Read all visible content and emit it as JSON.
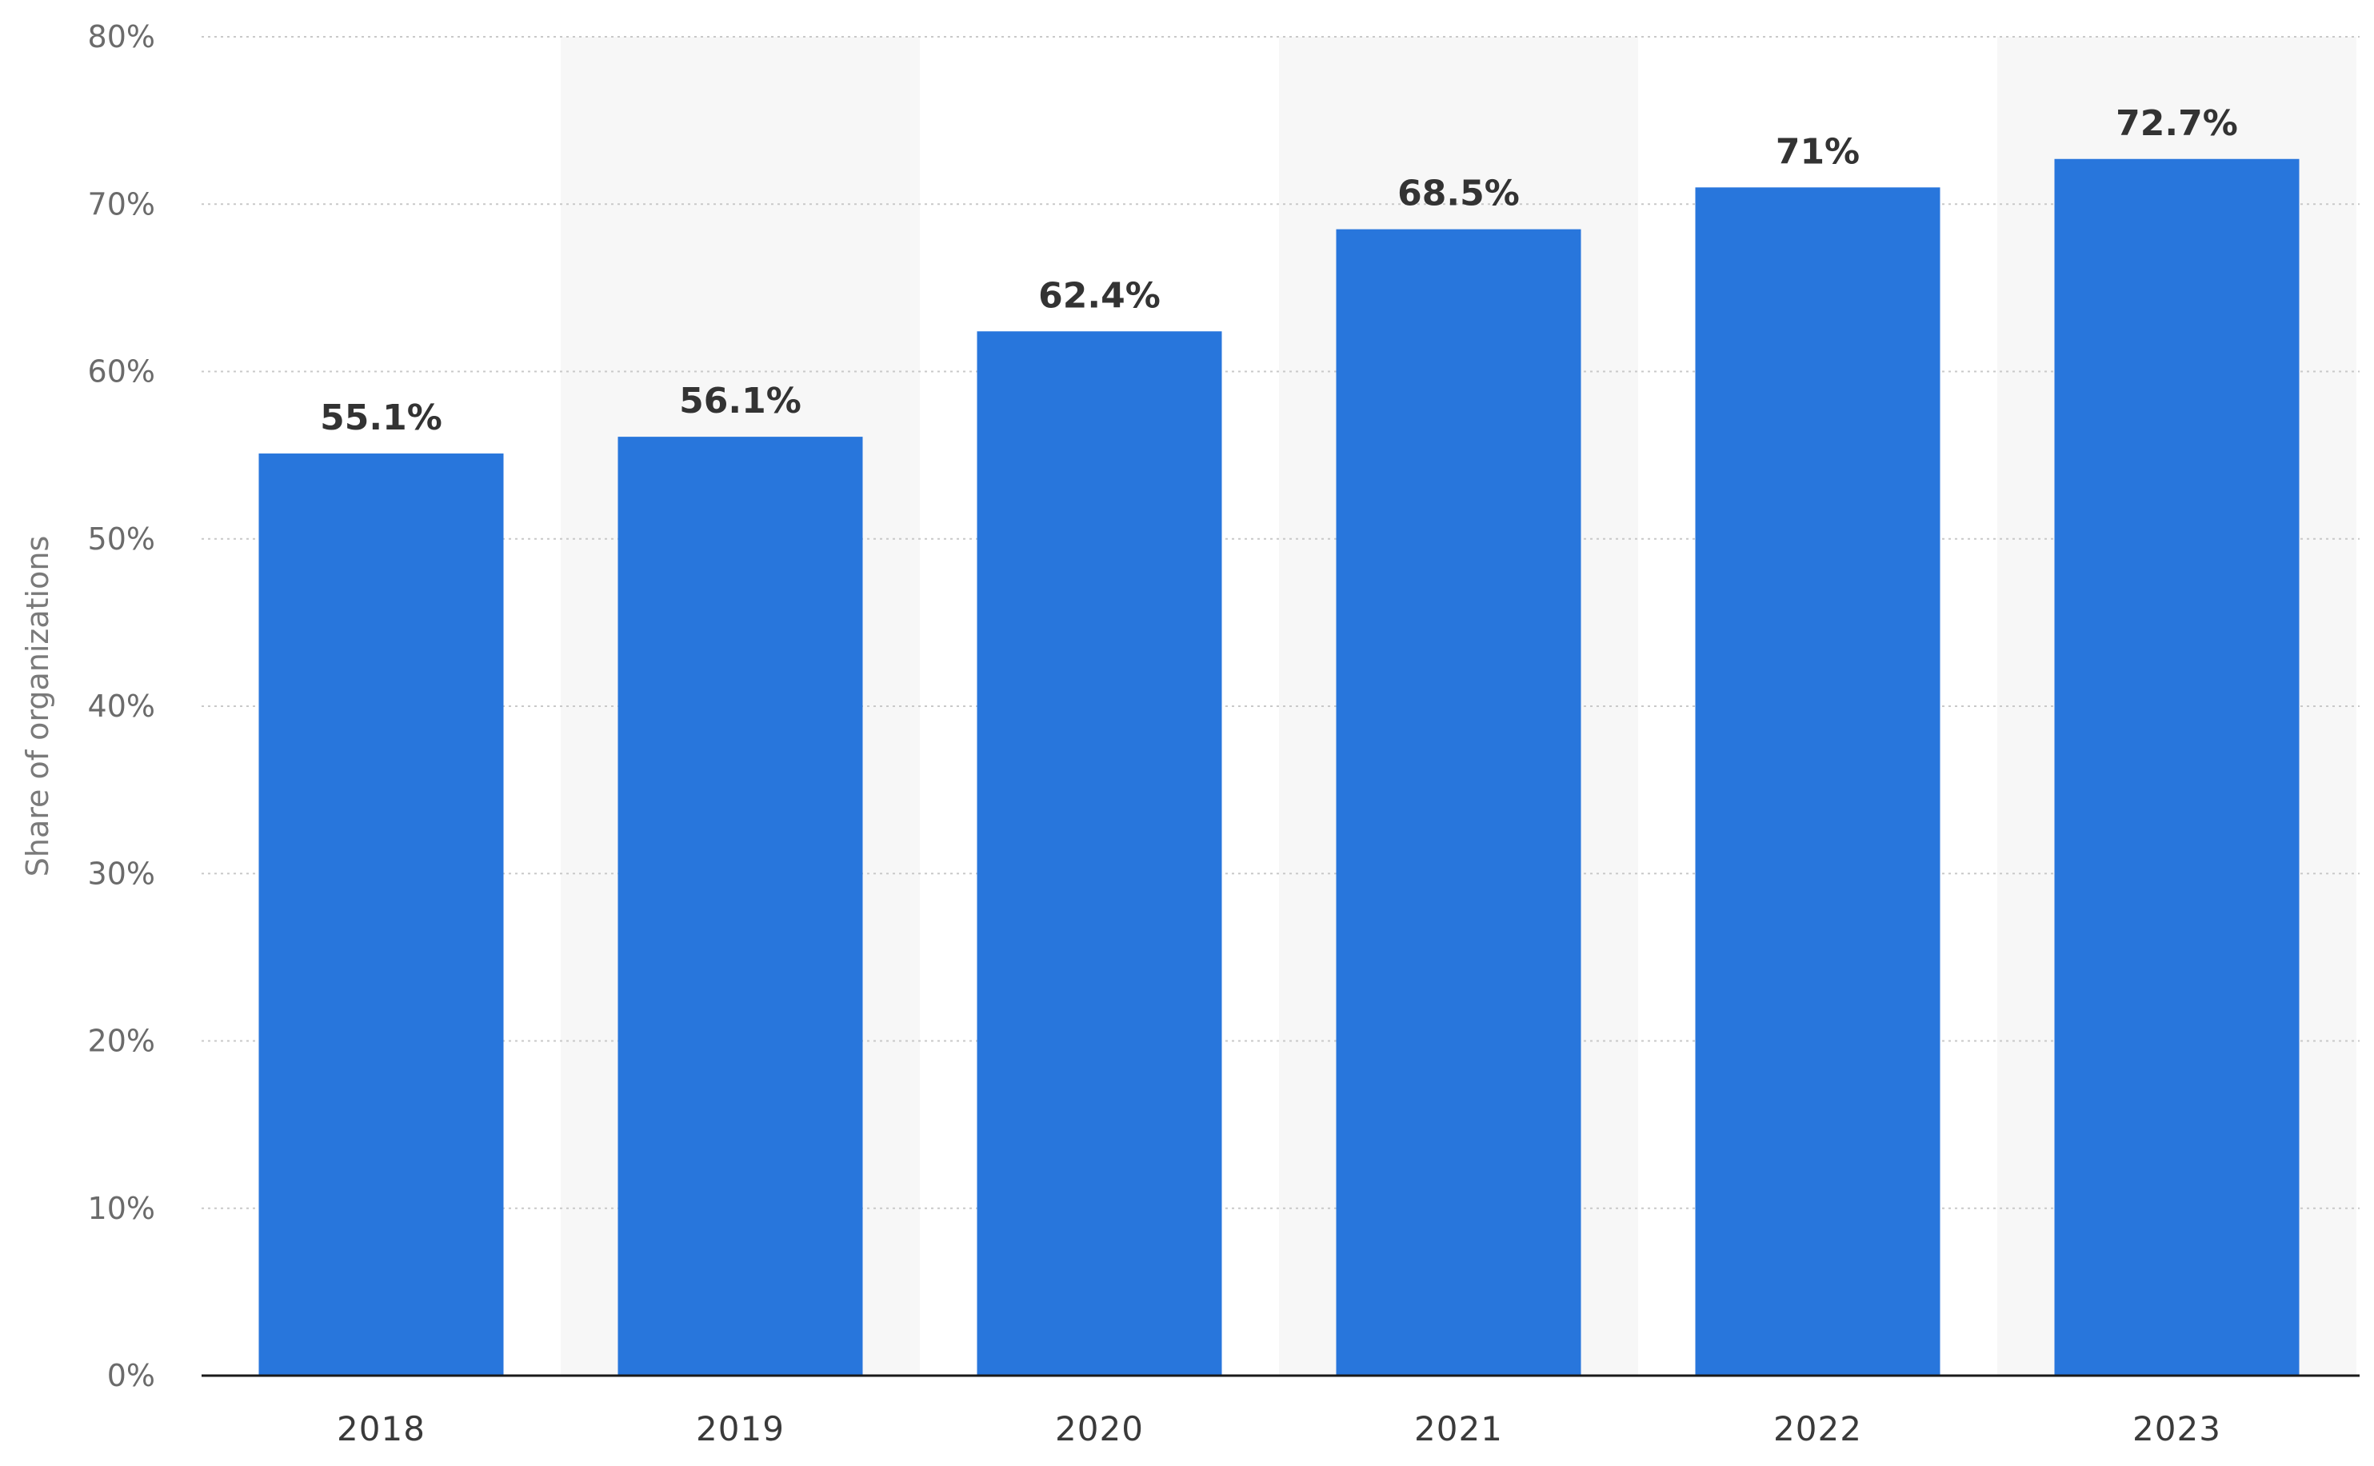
{
  "chart_data": {
    "type": "bar",
    "categories": [
      "2018",
      "2019",
      "2020",
      "2021",
      "2022",
      "2023"
    ],
    "values": [
      55.1,
      56.1,
      62.4,
      68.5,
      71,
      72.7
    ],
    "value_labels": [
      "55.1%",
      "56.1%",
      "62.4%",
      "68.5%",
      "71%",
      "72.7%"
    ],
    "ylabel": "Share of organizations",
    "xlabel": "",
    "ylim": [
      0,
      80
    ],
    "yticks": [
      0,
      10,
      20,
      30,
      40,
      50,
      60,
      70,
      80
    ],
    "ytick_labels": [
      "0%",
      "10%",
      "20%",
      "30%",
      "40%",
      "50%",
      "60%",
      "70%",
      "80%"
    ],
    "grid": true,
    "grid_style": "dotted",
    "alternating_column_shading": true,
    "colors": {
      "bar": "#2876dc",
      "band": "#f7f7f7",
      "grid": "#c9c9c9",
      "axis": "#1a1a1a"
    }
  }
}
